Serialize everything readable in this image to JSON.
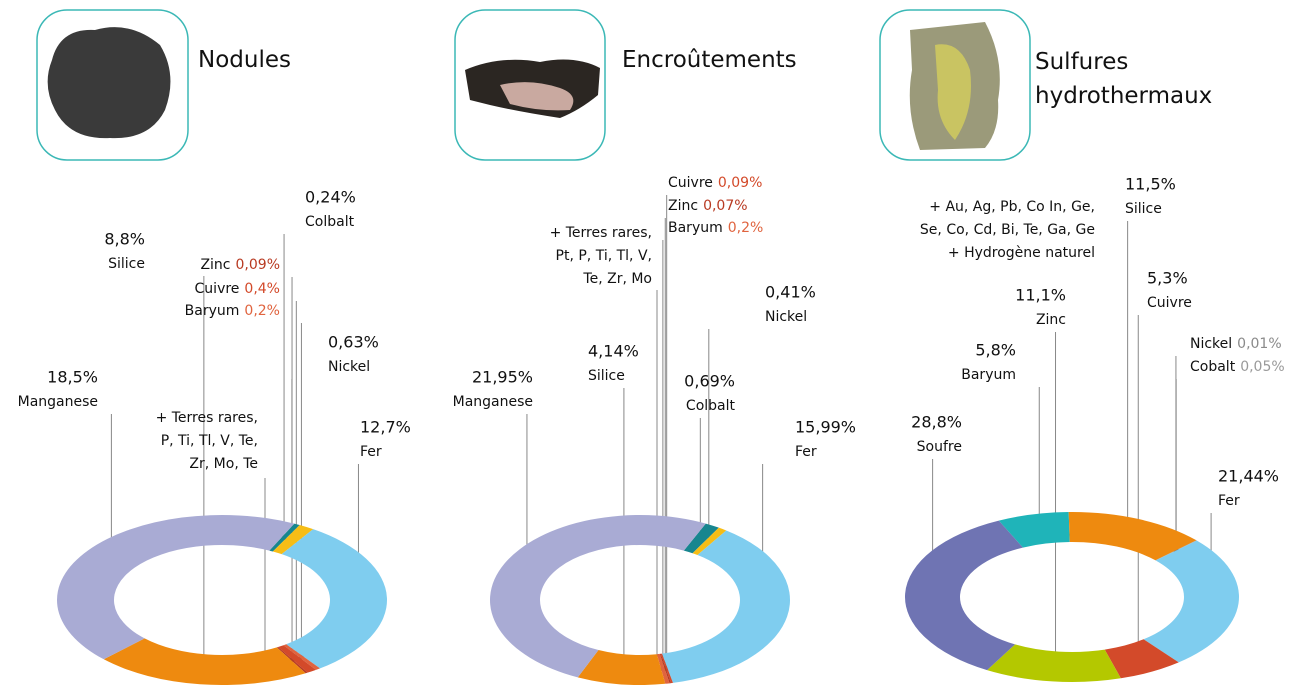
{
  "chart_data": [
    {
      "type": "donut",
      "title": "Nodules",
      "categories": [
        "Colbalt",
        "Nickel",
        "Fer",
        "Baryum",
        "Cuivre",
        "Zinc",
        "Silice",
        "Manganese"
      ],
      "values": [
        0.24,
        0.63,
        12.7,
        0.2,
        0.4,
        0.09,
        8.8,
        18.5
      ],
      "value_labels": [
        "0,24%",
        "0,63%",
        "12,7%",
        "0,2%",
        "0,4%",
        "0,09%",
        "8,8%",
        "18,5%"
      ],
      "colors": [
        "#17868f",
        "#f6bd16",
        "#7fcdef",
        "#e0643f",
        "#d34a2a",
        "#b83a22",
        "#ee8a0f",
        "#a9abd4"
      ],
      "annotation": [
        "+ Terres rares,",
        "P, Ti, Tl, V, Te,",
        "Zr, Mo, Te"
      ]
    },
    {
      "type": "donut",
      "title": "Encroûtements",
      "categories": [
        "Colbalt",
        "Nickel",
        "Fer",
        "Cuivre",
        "Zinc",
        "Baryum",
        "Silice",
        "Manganese"
      ],
      "values": [
        0.69,
        0.41,
        15.99,
        0.09,
        0.07,
        0.2,
        4.14,
        21.95
      ],
      "value_labels": [
        "0,69%",
        "0,41%",
        "15,99%",
        "0,09%",
        "0,07%",
        "0,2%",
        "4,14%",
        "21,95%"
      ],
      "colors": [
        "#17868f",
        "#f6bd16",
        "#7fcdef",
        "#d34a2a",
        "#b83a22",
        "#e0643f",
        "#ee8a0f",
        "#a9abd4"
      ],
      "annotation": [
        "+ Terres rares,",
        "Pt, P, Ti, Tl, V,",
        "Te, Zr, Mo"
      ]
    },
    {
      "type": "donut",
      "title": "Sulfures hydrothermaux",
      "categories": [
        "Baryum",
        "Silice",
        "Nickel",
        "Cobalt",
        "Fer",
        "Cuivre",
        "Zinc",
        "Soufre"
      ],
      "values": [
        5.8,
        11.5,
        0.01,
        0.05,
        21.44,
        5.3,
        11.1,
        28.8
      ],
      "value_labels": [
        "5,8%",
        "11,5%",
        "0,01%",
        "0,05%",
        "21,44%",
        "5,3%",
        "11,1%",
        "28,8%"
      ],
      "colors": [
        "#1fb4b9",
        "#ee8a0f",
        "#8a8a8a",
        "#9a9a9a",
        "#7fcdef",
        "#d34a2a",
        "#b4c800",
        "#6f74b3"
      ],
      "annotation": [
        "+ Au,  Ag, Pb, Co In, Ge,",
        "Se, Co, Cd, Bi, Te, Ga, Ge",
        "+ Hydrogène naturel"
      ]
    }
  ]
}
